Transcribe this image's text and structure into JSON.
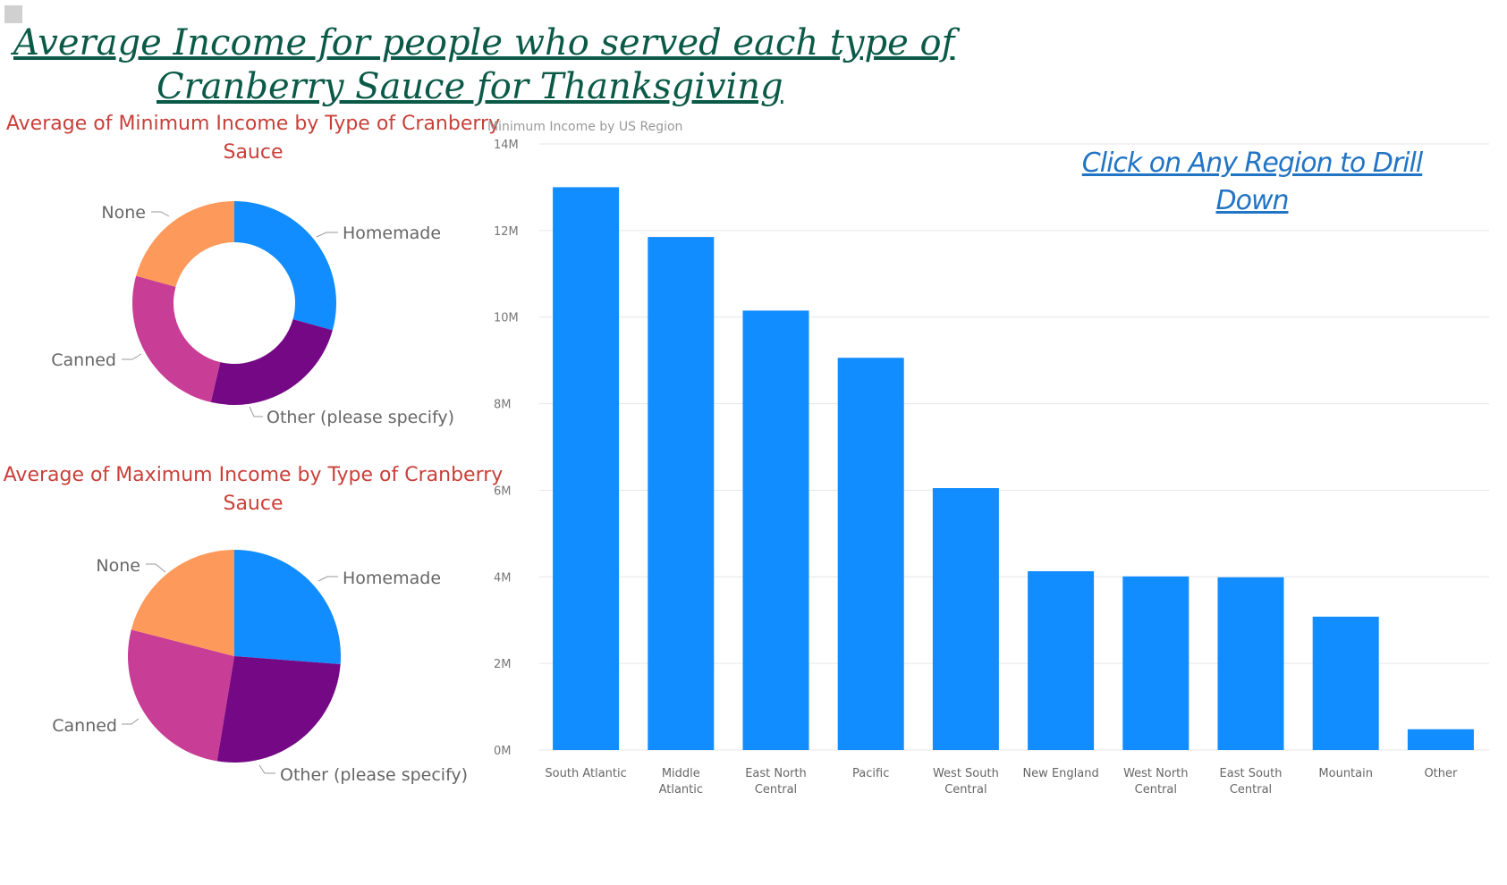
{
  "main_title": {
    "line1": "Average Income for people who served each type of ",
    "line2": "Cranberry Sauce for Thanksgiving"
  },
  "drill_link": {
    "line1": "Click on Any Region to Drill",
    "line2": "Down"
  },
  "colors": {
    "title": "#0b5a48",
    "pie_title": "#c9403a",
    "bar": "#118dff",
    "link": "#2274c4",
    "Homemade": "#118dff",
    "Other (please specify)": "#750985",
    "Canned": "#c83d95",
    "None": "#fd9a5b"
  },
  "chart_data": [
    {
      "type": "pie",
      "variant": "donut",
      "title_line1": "Average of Minimum Income by Type of Cranberry",
      "title_line2": "Sauce",
      "categories": [
        "Homemade",
        "Other (please specify)",
        "Canned",
        "None"
      ],
      "values": [
        29.3,
        24.4,
        25.6,
        20.7
      ]
    },
    {
      "type": "pie",
      "variant": "pie",
      "title_line1": "Average of Maximum Income by Type of Cranberry",
      "title_line2": "Sauce",
      "categories": [
        "Homemade",
        "Other (please specify)",
        "Canned",
        "None"
      ],
      "values": [
        26.2,
        26.4,
        26.4,
        21.0
      ]
    },
    {
      "type": "bar",
      "title": "Minimum Income by US Region",
      "categories": [
        [
          "South Atlantic"
        ],
        [
          "Middle",
          "Atlantic"
        ],
        [
          "East North",
          "Central"
        ],
        [
          "Pacific"
        ],
        [
          "West South",
          "Central"
        ],
        [
          "New England"
        ],
        [
          "West North",
          "Central"
        ],
        [
          "East South",
          "Central"
        ],
        [
          "Mountain"
        ],
        [
          "Other"
        ]
      ],
      "values": [
        13000000,
        11850000,
        10150000,
        9060000,
        6050000,
        4130000,
        4010000,
        3990000,
        3080000,
        480000
      ],
      "yticks": [
        "0M",
        "2M",
        "4M",
        "6M",
        "8M",
        "10M",
        "12M",
        "14M"
      ],
      "ylim": [
        0,
        14000000
      ],
      "grid": true
    }
  ]
}
